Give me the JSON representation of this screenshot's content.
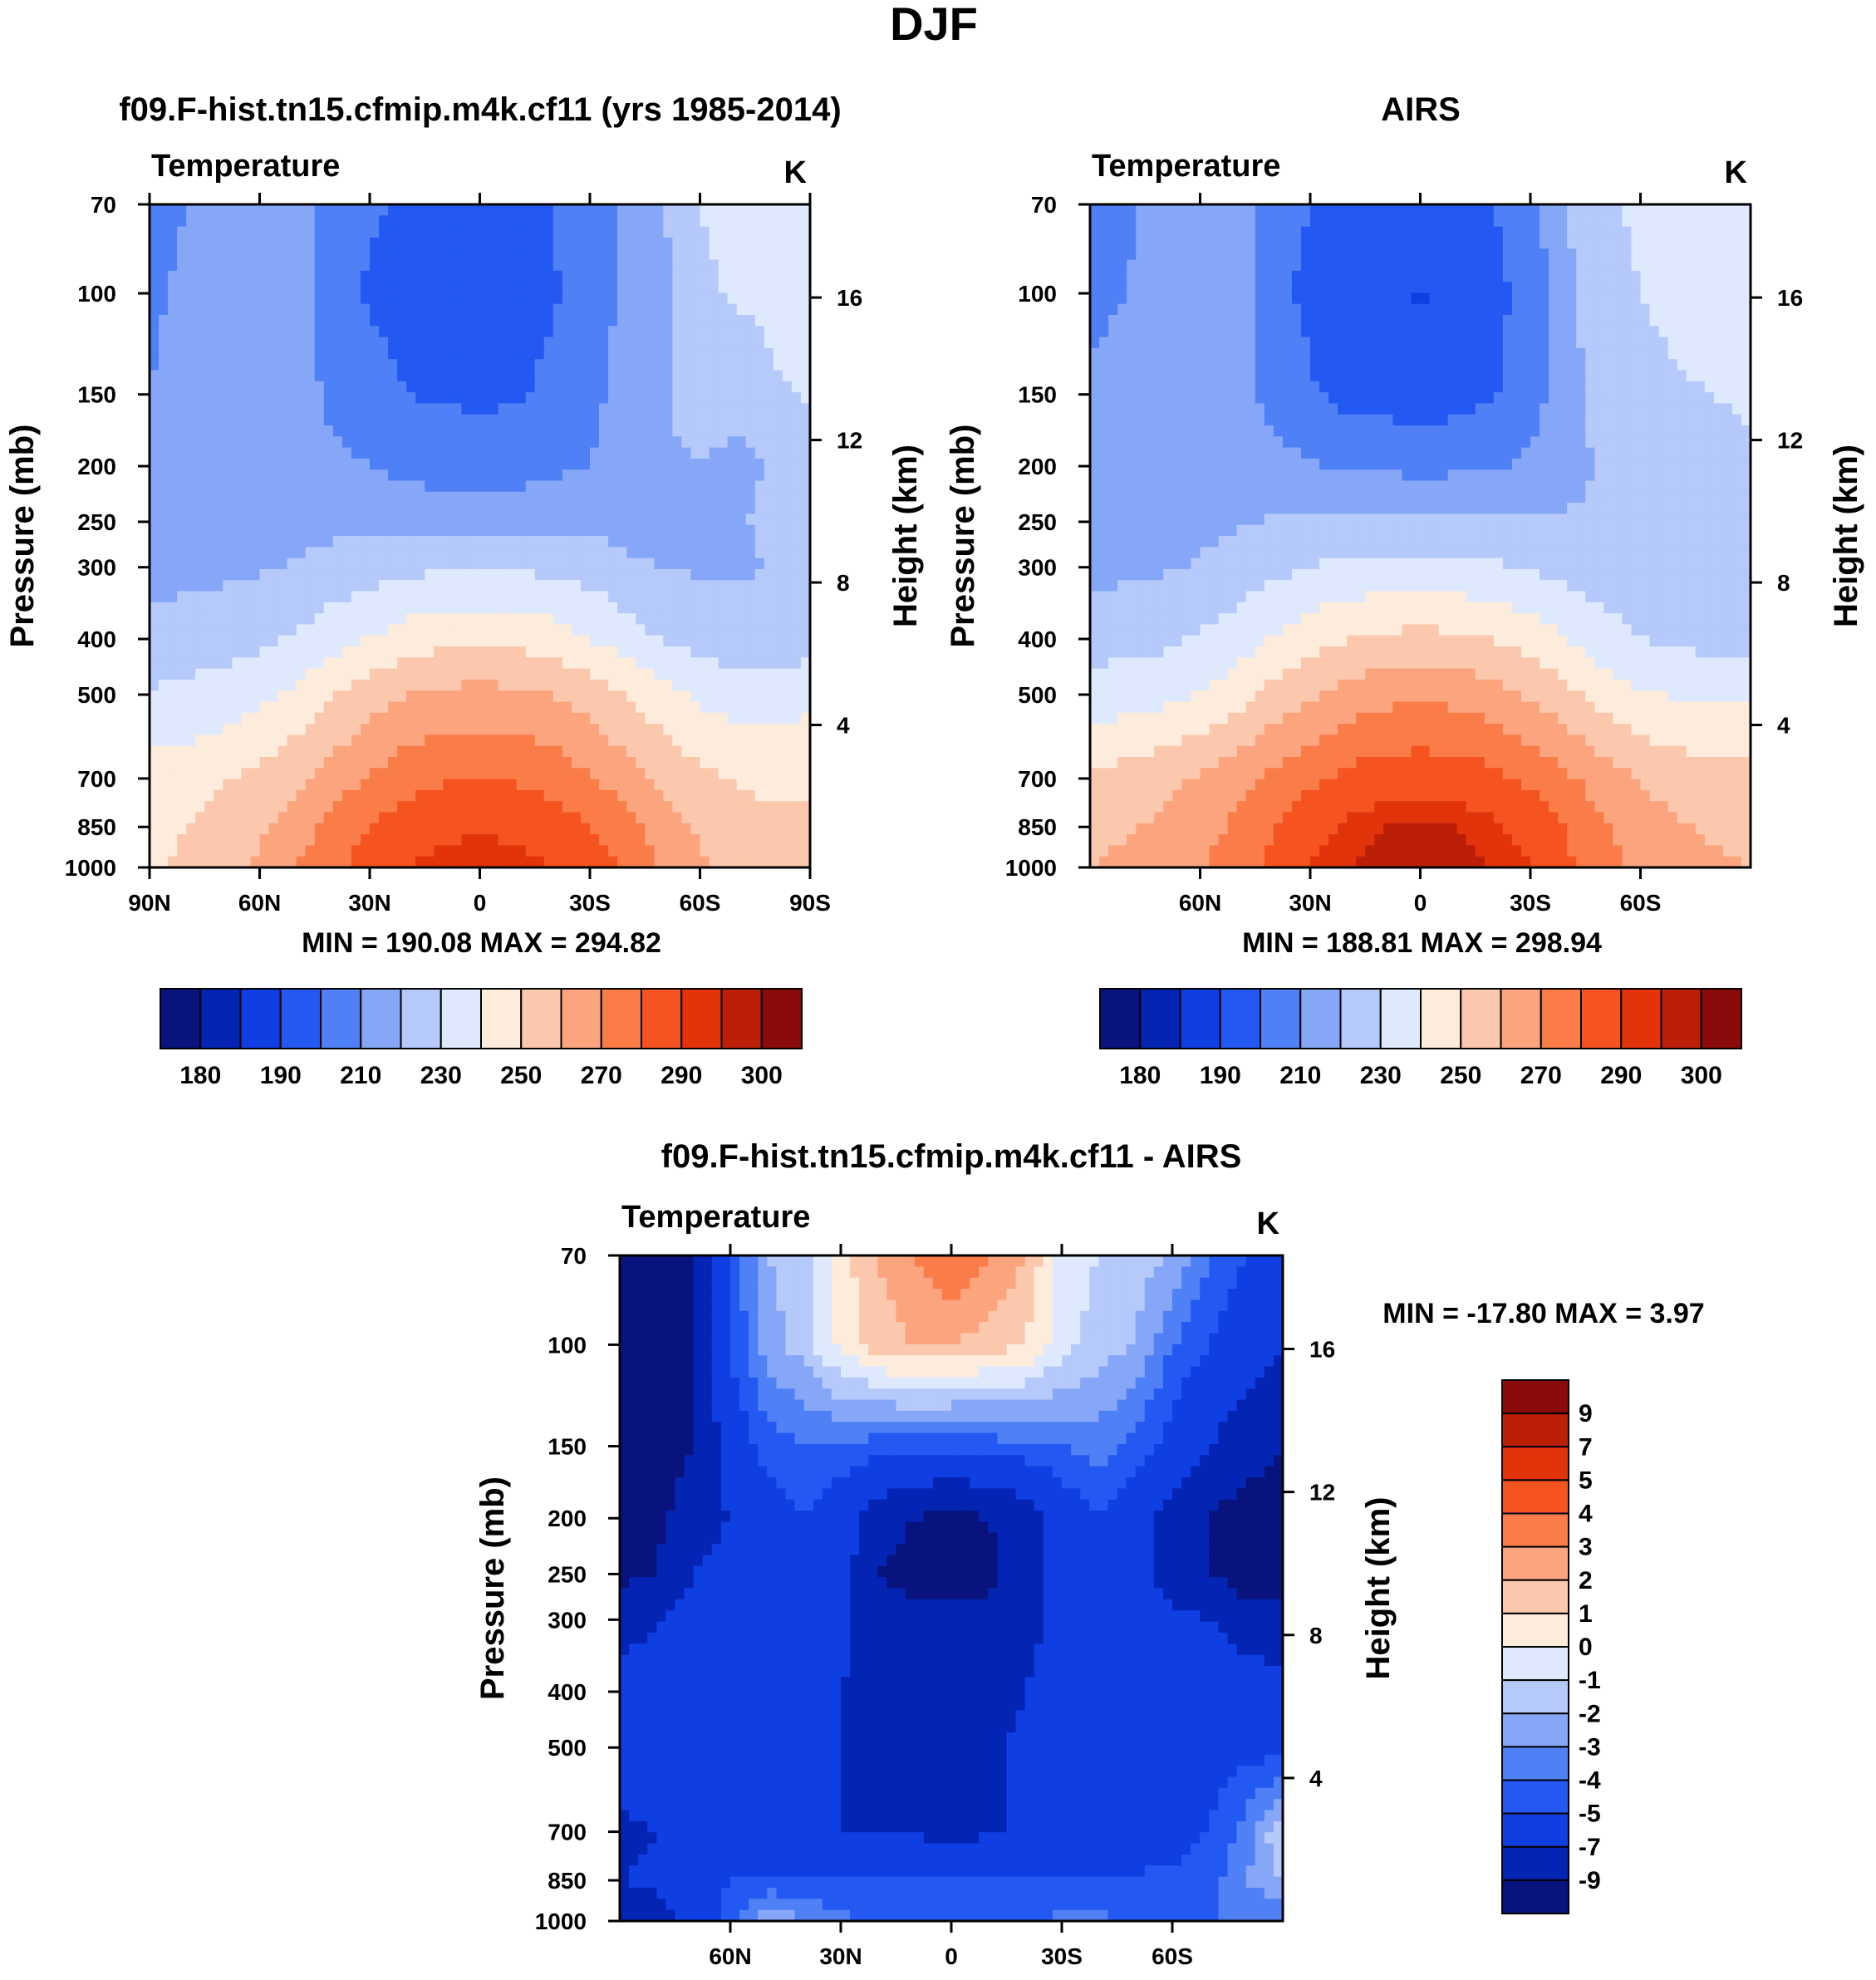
{
  "figure_title": "DJF",
  "palettes": {
    "absolute": [
      "#08137e",
      "#0425b4",
      "#0f3ee2",
      "#2359f2",
      "#4f80f5",
      "#86a7f8",
      "#b5c9fb",
      "#dfe9fd",
      "#fdebdc",
      "#fcc8ad",
      "#fba47e",
      "#fa7c49",
      "#f55420",
      "#e3330a",
      "#bb1f08",
      "#8b0b0b"
    ],
    "difference": [
      "#08137e",
      "#0425b4",
      "#0f3ee2",
      "#2359f2",
      "#4f80f5",
      "#86a7f8",
      "#b5c9fb",
      "#dfe9fd",
      "#fdebdc",
      "#fcc8ad",
      "#fba47e",
      "#fa7c49",
      "#f55420",
      "#e3330a",
      "#bb1f08",
      "#8b0b0b"
    ]
  },
  "chart_data": [
    {
      "id": "model",
      "type": "heatmap",
      "title": "f09.F-hist.tn15.cfmip.m4k.cf11 (yrs 1985-2014)",
      "subtitle_left": "Temperature",
      "units": "K",
      "xlabel": "",
      "ylabel": "Pressure (mb)",
      "y2label": "Height (km)",
      "xlim": [
        90,
        -90
      ],
      "x_ticks": [
        {
          "v": 90,
          "l": "90N"
        },
        {
          "v": 60,
          "l": "60N"
        },
        {
          "v": 30,
          "l": "30N"
        },
        {
          "v": 0,
          "l": "0"
        },
        {
          "v": -30,
          "l": "30S"
        },
        {
          "v": -60,
          "l": "60S"
        },
        {
          "v": -90,
          "l": "90S"
        }
      ],
      "pressure_levels": [
        70,
        100,
        150,
        200,
        250,
        300,
        400,
        500,
        700,
        850,
        1000
      ],
      "y_ticks": [
        "70",
        "100",
        "150",
        "200",
        "250",
        "300",
        "400",
        "500",
        "700",
        "850",
        "1000"
      ],
      "height_ticks": [
        {
          "v": 16,
          "l": "16"
        },
        {
          "v": 12,
          "l": "12"
        },
        {
          "v": 8,
          "l": "8"
        },
        {
          "v": 4,
          "l": "4"
        }
      ],
      "stats": "MIN = 190.08  MAX = 294.82",
      "levels": [
        180,
        185,
        190,
        200,
        210,
        220,
        230,
        240,
        250,
        260,
        270,
        280,
        290,
        295,
        300
      ],
      "colorbar_labels": [
        "180",
        "190",
        "210",
        "230",
        "250",
        "270",
        "290",
        "300"
      ],
      "colorbar_label_at": [
        0,
        2,
        4,
        6,
        8,
        10,
        12,
        14
      ],
      "lat_grid": [
        90,
        80,
        70,
        60,
        50,
        40,
        30,
        20,
        10,
        0,
        -10,
        -20,
        -30,
        -40,
        -50,
        -60,
        -70,
        -80,
        -90
      ],
      "values": [
        [
          208,
          210,
          213,
          216,
          217,
          204,
          201,
          199,
          197,
          196,
          198,
          200,
          206,
          212,
          219,
          230,
          233,
          234,
          236
        ],
        [
          209,
          211,
          214,
          216,
          215,
          203,
          199,
          197,
          196,
          195,
          197,
          199,
          205,
          212,
          218,
          228,
          231,
          232,
          233
        ],
        [
          210,
          212,
          214,
          216,
          214,
          208,
          203,
          200,
          199,
          198,
          199,
          202,
          207,
          214,
          219,
          227,
          224,
          229,
          231
        ],
        [
          211,
          213,
          214,
          214,
          213,
          212,
          210,
          207,
          206,
          205,
          206,
          208,
          210,
          214,
          217,
          220,
          216,
          222,
          226
        ],
        [
          211,
          213,
          215,
          216,
          217,
          217,
          218,
          217,
          216,
          215,
          216,
          217,
          218,
          216,
          217,
          218,
          219,
          222,
          224
        ],
        [
          215,
          217,
          218,
          219,
          221,
          224,
          226,
          227,
          229,
          229,
          229,
          227,
          226,
          222,
          220,
          219,
          219,
          220,
          221
        ],
        [
          224,
          225,
          226,
          228,
          231,
          236,
          240,
          245,
          247,
          248,
          247,
          245,
          240,
          235,
          229,
          226,
          224,
          224,
          225
        ],
        [
          231,
          232,
          234,
          237,
          242,
          249,
          255,
          260,
          262,
          263,
          262,
          260,
          255,
          249,
          243,
          238,
          236,
          236,
          237
        ],
        [
          244,
          246,
          249,
          253,
          258,
          265,
          271,
          276,
          279,
          280,
          279,
          276,
          271,
          265,
          258,
          252,
          249,
          248,
          248
        ],
        [
          248,
          250,
          253,
          258,
          265,
          273,
          280,
          285,
          288,
          289,
          288,
          285,
          280,
          274,
          265,
          258,
          254,
          252,
          252
        ],
        [
          249,
          251,
          255,
          262,
          270,
          278,
          285,
          290,
          293,
          294,
          293,
          290,
          285,
          279,
          269,
          262,
          258,
          255,
          255
        ]
      ]
    },
    {
      "id": "airs",
      "type": "heatmap",
      "title": "AIRS",
      "subtitle_left": "Temperature",
      "units": "K",
      "xlabel": "",
      "ylabel": "Pressure (mb)",
      "y2label": "Height (km)",
      "xlim": [
        90,
        -90
      ],
      "x_ticks": [
        {
          "v": 60,
          "l": "60N"
        },
        {
          "v": 30,
          "l": "30N"
        },
        {
          "v": 0,
          "l": "0"
        },
        {
          "v": -30,
          "l": "30S"
        },
        {
          "v": -60,
          "l": "60S"
        }
      ],
      "pressure_levels": [
        70,
        100,
        150,
        200,
        250,
        300,
        400,
        500,
        700,
        850,
        1000
      ],
      "y_ticks": [
        "70",
        "100",
        "150",
        "200",
        "250",
        "300",
        "400",
        "500",
        "700",
        "850",
        "1000"
      ],
      "height_ticks": [
        {
          "v": 16,
          "l": "16"
        },
        {
          "v": 12,
          "l": "12"
        },
        {
          "v": 8,
          "l": "8"
        },
        {
          "v": 4,
          "l": "4"
        }
      ],
      "stats": "MIN = 188.81  MAX = 298.94",
      "levels": [
        180,
        185,
        190,
        200,
        210,
        220,
        230,
        240,
        250,
        260,
        270,
        280,
        290,
        295,
        300
      ],
      "colorbar_labels": [
        "180",
        "190",
        "210",
        "230",
        "250",
        "270",
        "290",
        "300"
      ],
      "colorbar_label_at": [
        0,
        2,
        4,
        6,
        8,
        10,
        12,
        14
      ],
      "lat_grid": [
        90,
        80,
        70,
        60,
        50,
        40,
        30,
        20,
        10,
        0,
        -10,
        -20,
        -30,
        -40,
        -50,
        -60,
        -70,
        -80,
        -90
      ],
      "values": [
        [
          207,
          209,
          212,
          216,
          217,
          204,
          200,
          198,
          197,
          197,
          198,
          200,
          205,
          220,
          228,
          232,
          234,
          236,
          240
        ],
        [
          208,
          210,
          213,
          216,
          215,
          202,
          198,
          195,
          193,
          189,
          194,
          197,
          204,
          218,
          226,
          230,
          232,
          234,
          236
        ],
        [
          211,
          213,
          215,
          216,
          214,
          207,
          201,
          197,
          196,
          195,
          196,
          199,
          205,
          216,
          224,
          228,
          229,
          230,
          231
        ],
        [
          213,
          214,
          215,
          216,
          215,
          213,
          211,
          209,
          208,
          207,
          208,
          209,
          212,
          217,
          221,
          225,
          227,
          228,
          229
        ],
        [
          214,
          215,
          216,
          217,
          219,
          221,
          222,
          223,
          223,
          222,
          222,
          222,
          222,
          221,
          221,
          222,
          223,
          224,
          225
        ],
        [
          217,
          218,
          219,
          221,
          224,
          227,
          230,
          232,
          233,
          233,
          232,
          231,
          229,
          226,
          224,
          223,
          223,
          223,
          224
        ],
        [
          226,
          227,
          228,
          231,
          235,
          241,
          246,
          250,
          252,
          253,
          252,
          250,
          246,
          240,
          234,
          230,
          228,
          227,
          227
        ],
        [
          234,
          235,
          237,
          240,
          246,
          253,
          259,
          264,
          267,
          268,
          267,
          264,
          259,
          252,
          246,
          241,
          239,
          238,
          238
        ],
        [
          252,
          254,
          257,
          261,
          266,
          273,
          278,
          283,
          285,
          286,
          285,
          283,
          278,
          272,
          265,
          259,
          256,
          254,
          254
        ],
        [
          257,
          259,
          262,
          266,
          272,
          280,
          286,
          292,
          295,
          296,
          295,
          292,
          286,
          279,
          271,
          264,
          261,
          259,
          258
        ],
        [
          260,
          262,
          265,
          269,
          275,
          283,
          290,
          295,
          298,
          299,
          298,
          295,
          290,
          282,
          274,
          267,
          264,
          261,
          260
        ]
      ]
    },
    {
      "id": "difference",
      "type": "heatmap",
      "title": "f09.F-hist.tn15.cfmip.m4k.cf11 - AIRS",
      "subtitle_left": "Temperature",
      "units": "K",
      "xlabel": "",
      "ylabel": "Pressure (mb)",
      "y2label": "Height (km)",
      "xlim": [
        90,
        -90
      ],
      "x_ticks": [
        {
          "v": 60,
          "l": "60N"
        },
        {
          "v": 30,
          "l": "30N"
        },
        {
          "v": 0,
          "l": "0"
        },
        {
          "v": -30,
          "l": "30S"
        },
        {
          "v": -60,
          "l": "60S"
        }
      ],
      "pressure_levels": [
        70,
        100,
        150,
        200,
        250,
        300,
        400,
        500,
        700,
        850,
        1000
      ],
      "y_ticks": [
        "70",
        "100",
        "150",
        "200",
        "250",
        "300",
        "400",
        "500",
        "700",
        "850",
        "1000"
      ],
      "height_ticks": [
        {
          "v": 16,
          "l": "16"
        },
        {
          "v": 12,
          "l": "12"
        },
        {
          "v": 8,
          "l": "8"
        },
        {
          "v": 4,
          "l": "4"
        }
      ],
      "stats": "MIN = -17.80  MAX =    3.97",
      "levels": [
        -9,
        -7,
        -5,
        -4,
        -3,
        -2,
        -1,
        0,
        1,
        2,
        3,
        4,
        5,
        7,
        9
      ],
      "colorbar_labels": [
        "9",
        "7",
        "5",
        "4",
        "3",
        "2",
        "1",
        "0",
        "-1",
        "-2",
        "-3",
        "-4",
        "-5",
        "-7",
        "-9"
      ],
      "lat_grid": [
        90,
        80,
        70,
        60,
        50,
        40,
        30,
        20,
        10,
        0,
        -10,
        -20,
        -30,
        -40,
        -50,
        -60,
        -70,
        -80,
        -90
      ],
      "values": [
        [
          -12,
          -11,
          -9,
          -5,
          -2,
          -1.5,
          0.5,
          2,
          3,
          4,
          3,
          2,
          -0.5,
          -1,
          -1.5,
          -2,
          -4,
          -5,
          -6
        ],
        [
          -12,
          -11,
          -9,
          -5,
          -2.5,
          -1.5,
          0.3,
          1.5,
          2,
          2,
          1.5,
          1,
          -0.5,
          -1.5,
          -2,
          -4,
          -5,
          -6,
          -7
        ],
        [
          -11,
          -10,
          -9,
          -6,
          -4.5,
          -4,
          -4.2,
          -4.5,
          -4.6,
          -4.7,
          -4.5,
          -4.3,
          -4,
          -3.5,
          -4.5,
          -5.5,
          -7,
          -8,
          -9
        ],
        [
          -10,
          -9.5,
          -8,
          -7,
          -6,
          -5,
          -6,
          -8,
          -9,
          -9.5,
          -9,
          -8,
          -6,
          -5,
          -6,
          -8,
          -9,
          -10,
          -10
        ],
        [
          -9.5,
          -9,
          -7,
          -6,
          -5,
          -5,
          -6,
          -9,
          -9.8,
          -10,
          -9.5,
          -8,
          -6,
          -5.5,
          -6,
          -8,
          -9,
          -10,
          -10
        ],
        [
          -8,
          -7,
          -6,
          -5.5,
          -5,
          -5.5,
          -6.5,
          -8,
          -8.5,
          -8.5,
          -8.5,
          -7.5,
          -6.5,
          -6,
          -6,
          -6.5,
          -7,
          -8,
          -8.5
        ],
        [
          -6,
          -6,
          -5.5,
          -5.5,
          -5.5,
          -6,
          -7,
          -7.5,
          -7.5,
          -7.5,
          -7.5,
          -7,
          -6.5,
          -6,
          -5.5,
          -5.5,
          -5.5,
          -6,
          -6
        ],
        [
          -5.5,
          -5.5,
          -5.5,
          -5.5,
          -6,
          -6.5,
          -7,
          -7.5,
          -7.5,
          -7.5,
          -7.2,
          -6.8,
          -6.5,
          -6,
          -5.5,
          -5.5,
          -5.5,
          -5.5,
          -5.5
        ],
        [
          -7.5,
          -7,
          -6.5,
          -6,
          -6,
          -6.5,
          -7,
          -7.2,
          -7.2,
          -7.5,
          -7.2,
          -6.8,
          -6.5,
          -6,
          -6,
          -5.5,
          -5,
          -3.5,
          -1
        ],
        [
          -7,
          -6.5,
          -5.5,
          -5,
          -4.8,
          -4.8,
          -5,
          -5,
          -5,
          -5,
          -5,
          -5,
          -4.8,
          -4.8,
          -4.8,
          -4.8,
          -4.5,
          -3,
          -2
        ],
        [
          -9,
          -8,
          -6,
          -4.5,
          -2,
          -3,
          -3.8,
          -4,
          -4,
          -4,
          -4,
          -4,
          -3.8,
          -3.8,
          -4,
          -4,
          -4,
          -4,
          -4
        ]
      ]
    }
  ]
}
